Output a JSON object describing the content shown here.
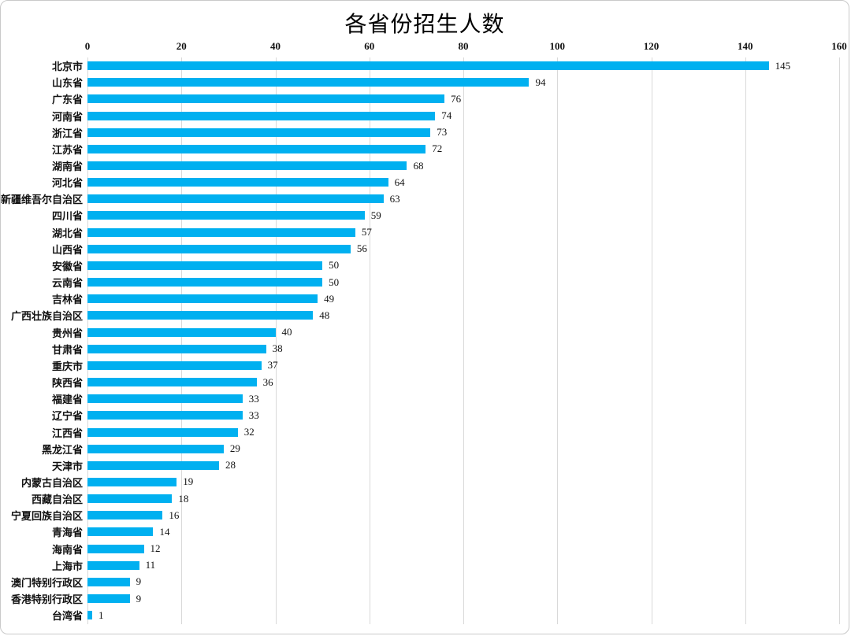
{
  "chart": {
    "title": "各省份招生人数"
  },
  "chart_data": {
    "type": "bar",
    "orientation": "horizontal",
    "title": "各省份招生人数",
    "categories": [
      "北京市",
      "山东省",
      "广东省",
      "河南省",
      "浙江省",
      "江苏省",
      "湖南省",
      "河北省",
      "新疆维吾尔自治区",
      "四川省",
      "湖北省",
      "山西省",
      "安徽省",
      "云南省",
      "吉林省",
      "广西壮族自治区",
      "贵州省",
      "甘肃省",
      "重庆市",
      "陕西省",
      "福建省",
      "辽宁省",
      "江西省",
      "黑龙江省",
      "天津市",
      "内蒙古自治区",
      "西藏自治区",
      "宁夏回族自治区",
      "青海省",
      "海南省",
      "上海市",
      "澳门特别行政区",
      "香港特别行政区",
      "台湾省"
    ],
    "values": [
      145,
      94,
      76,
      74,
      73,
      72,
      68,
      64,
      63,
      59,
      57,
      56,
      50,
      50,
      49,
      48,
      40,
      38,
      37,
      36,
      33,
      33,
      32,
      29,
      28,
      19,
      18,
      16,
      14,
      12,
      11,
      9,
      9,
      1
    ],
    "xlabel": "",
    "ylabel": "",
    "xlim": [
      0,
      160
    ],
    "xticks": [
      0,
      20,
      40,
      60,
      80,
      100,
      120,
      140,
      160
    ],
    "grid": true,
    "value_labels": true,
    "axis_position": "top",
    "bar_color": "#00B0F0",
    "gridline_color": "#d9d9d9",
    "text_color": "#111111"
  }
}
